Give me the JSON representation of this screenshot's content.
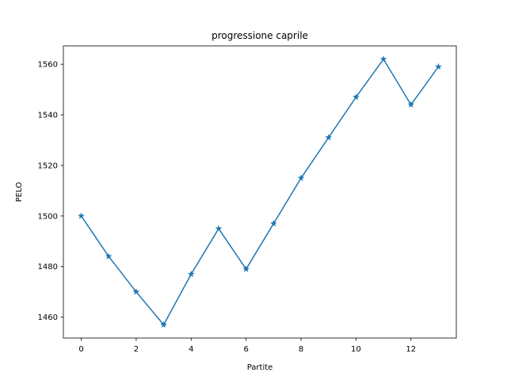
{
  "chart_data": {
    "type": "line",
    "title": "progressione caprile",
    "xlabel": "Partite",
    "ylabel": "PELO",
    "xlim": [
      -0.65,
      13.65
    ],
    "ylim": [
      1451.75,
      1567.25
    ],
    "xticks": [
      0,
      2,
      4,
      6,
      8,
      10,
      12
    ],
    "yticks": [
      1460,
      1480,
      1500,
      1520,
      1540,
      1560
    ],
    "grid": false,
    "marker": "star",
    "color": "#1f77b4",
    "series": [
      {
        "x": [
          0,
          1,
          2,
          3,
          4,
          5,
          6,
          7,
          8,
          9,
          10,
          11,
          12,
          13
        ],
        "values": [
          1500,
          1484,
          1470,
          1457,
          1477,
          1495,
          1479,
          1497,
          1515,
          1531,
          1547,
          1562,
          1544,
          1559
        ]
      }
    ]
  }
}
